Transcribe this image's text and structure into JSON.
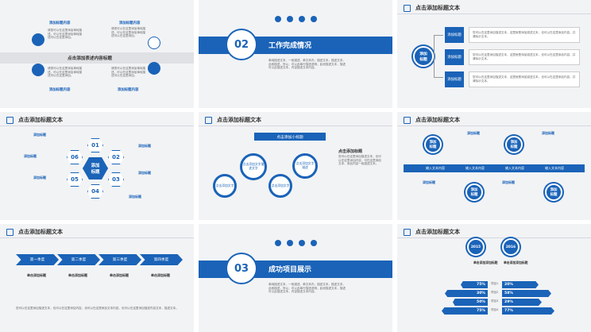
{
  "slides": {
    "s1": {
      "left_head": "添加标题内容",
      "right_head": "添加标题内容",
      "band_title": "点击添加表述内容标题",
      "bottom_left": "添加标题内容",
      "bottom_right": "添加标题内容",
      "desc": "请您可以在这里添加单纯描述，可以在这里添加单纯描述可以在这里添加。"
    },
    "s2": {
      "number": "02",
      "title": "工作完成情况",
      "body": "单纯描述文本，一段描述，单文本内，描述文本，描述文本，此段描述，所以，可以此单行描述说明，此段描述文本，描述可以此描述文本，内容描述文本内容。"
    },
    "s3": {
      "header": "点击添加标题文本",
      "center": "添加\n标题",
      "items": [
        "添加标题",
        "添加标题",
        "添加标题"
      ],
      "desc": "您可以在这里添加描述文本，这里就是添加描述文本，也可以在这里添加内容，并清除示文本。"
    },
    "s4": {
      "header": "点击添加标题文本",
      "center": "添加\n标题",
      "hex_nums": [
        "01",
        "02",
        "03",
        "04",
        "05",
        "06"
      ],
      "left_labels": [
        "添加标题",
        "添加标题",
        "添加标题"
      ],
      "right_labels": [
        "添加标题",
        "添加标题",
        "添加标题"
      ]
    },
    "s5": {
      "header": "点击添加标题文本",
      "band": "点击添加小标题",
      "gears": [
        "点击添加文字",
        "点击添加文字描述文字",
        "点击添加文字",
        "点击添加文字描述"
      ],
      "side_title": "点击添加标题",
      "side_body": "您可以在这里添加描述文本，也可以在这里添加内容，可在这里添加文本，添加内容一段描述文本。"
    },
    "s6": {
      "header": "点击添加标题文本",
      "circles": [
        "添加\n标题",
        "添加\n标题",
        "添加\n标题",
        "添加\n标题"
      ],
      "bar_items": [
        "输入文本内容",
        "输入文本内容",
        "输入文本内容",
        "输入文本内容"
      ],
      "labels": [
        "添加标题",
        "添加标题",
        "添加标题",
        "添加标题"
      ]
    },
    "s7": {
      "header": "点击添加标题文本",
      "stages": [
        "第一季度",
        "第二季度",
        "第三季度",
        "第四季度"
      ],
      "col_titles": [
        "单击添加标题",
        "单击添加标题",
        "单击添加标题",
        "单击添加标题"
      ],
      "footer": "您可以在这里添加描述文本，也可以在这里添加内容，也可以在这里添加文本内容，也可以在这里添加描述内容文本，描述文本。"
    },
    "s8": {
      "number": "03",
      "title": "成功项目展示",
      "body": "单纯描述文本，一段描述，单文本内，描述文本，描述文本，此段描述，所以，可以此单行描述说明，此段描述文本，描述可以此描述文本，内容描述文本内容。"
    },
    "s9": {
      "header": "点击添加标题文本",
      "year_left": "2015",
      "year_right": "2016",
      "col_title_left": "单击添加添加标题",
      "col_title_right": "单击添加添加标题",
      "left_values": [
        "75%",
        "30%",
        "50%",
        "75%"
      ],
      "right_values": [
        "20%",
        "58%",
        "29%",
        "77%"
      ],
      "mid_labels": [
        "项目1",
        "项目2",
        "项目3",
        "项目4"
      ]
    }
  },
  "colors": {
    "accent": "#1a63b8",
    "bg": "#f2f3f5"
  }
}
